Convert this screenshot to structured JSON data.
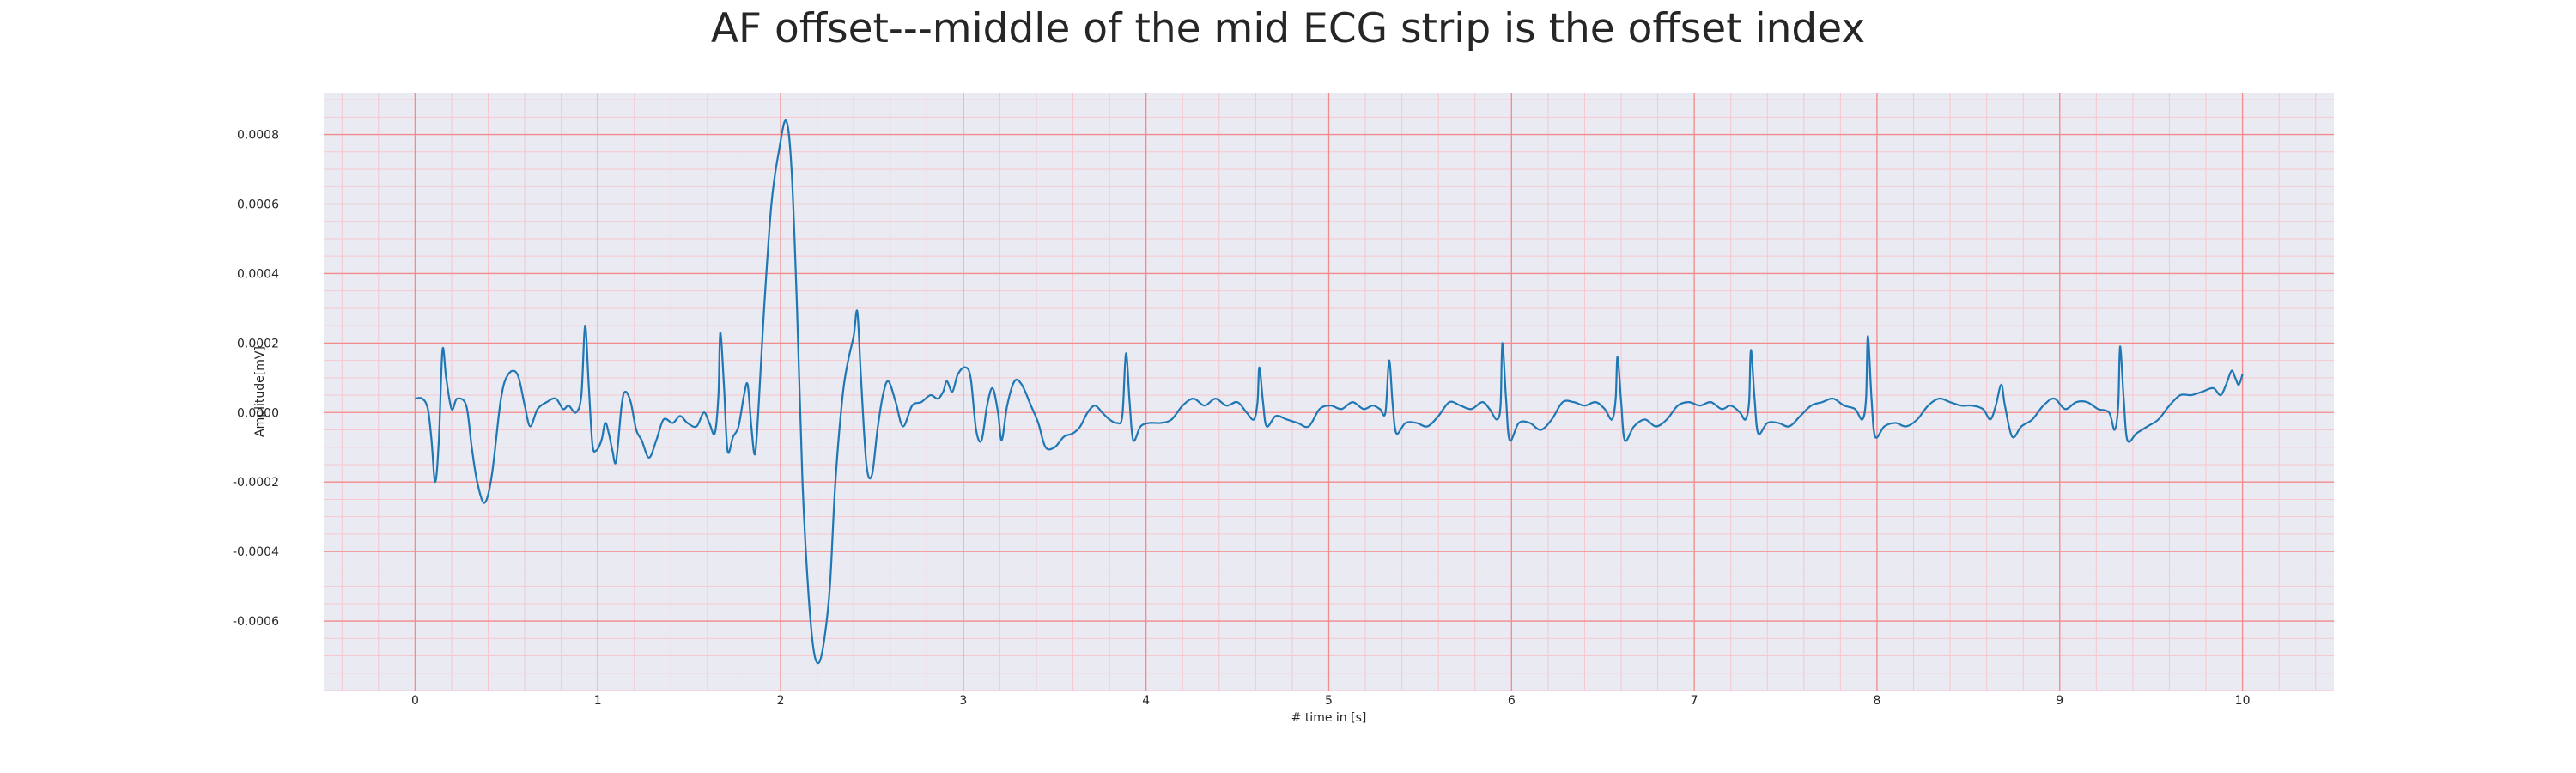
{
  "chart_data": {
    "type": "line",
    "title": "AF offset---middle of the mid ECG strip is the offset index",
    "xlabel": "# time in [s]",
    "ylabel": "Amplitude[mV]",
    "xlim": [
      -0.5,
      10.5
    ],
    "ylim": [
      -0.0008,
      0.00092
    ],
    "x_ticks": [
      0,
      1,
      2,
      3,
      4,
      5,
      6,
      7,
      8,
      9,
      10
    ],
    "x_tick_labels": [
      "0",
      "1",
      "2",
      "3",
      "4",
      "5",
      "6",
      "7",
      "8",
      "9",
      "10"
    ],
    "y_ticks": [
      -0.0006,
      -0.0004,
      -0.0002,
      0.0,
      0.0002,
      0.0004,
      0.0006,
      0.0008
    ],
    "y_tick_labels": [
      "-0.0006",
      "-0.0004",
      "-0.0002",
      "0.0000",
      "0.0002",
      "0.0004",
      "0.0006",
      "0.0008"
    ],
    "grid": true,
    "minor_grid": true,
    "colors": {
      "plot_background": "#eaeaf2",
      "major_grid": "#f28b8b",
      "minor_grid": "#f6c7cd",
      "line": "#1f77b4"
    },
    "series": [
      {
        "name": "",
        "points": [
          [
            0.0,
            4e-05
          ],
          [
            0.04,
            4e-05
          ],
          [
            0.07,
            1e-05
          ],
          [
            0.09,
            -8e-05
          ],
          [
            0.11,
            -0.0002
          ],
          [
            0.13,
            -8e-05
          ],
          [
            0.15,
            0.00018
          ],
          [
            0.17,
            0.0001
          ],
          [
            0.2,
            1e-05
          ],
          [
            0.23,
            4e-05
          ],
          [
            0.28,
            2e-05
          ],
          [
            0.31,
            -0.0001
          ],
          [
            0.34,
            -0.0002
          ],
          [
            0.38,
            -0.00026
          ],
          [
            0.42,
            -0.00018
          ],
          [
            0.47,
            4e-05
          ],
          [
            0.51,
            0.00011
          ],
          [
            0.56,
            0.00011
          ],
          [
            0.6,
            2e-05
          ],
          [
            0.63,
            -4e-05
          ],
          [
            0.67,
            1e-05
          ],
          [
            0.72,
            3e-05
          ],
          [
            0.77,
            4e-05
          ],
          [
            0.81,
            1e-05
          ],
          [
            0.84,
            2e-05
          ],
          [
            0.88,
            0.0
          ],
          [
            0.91,
            5e-05
          ],
          [
            0.93,
            0.00025
          ],
          [
            0.95,
            8e-05
          ],
          [
            0.97,
            -9e-05
          ],
          [
            0.99,
            -0.00011
          ],
          [
            1.02,
            -8e-05
          ],
          [
            1.04,
            -3e-05
          ],
          [
            1.06,
            -6e-05
          ],
          [
            1.08,
            -0.00011
          ],
          [
            1.1,
            -0.00014
          ],
          [
            1.13,
            2e-05
          ],
          [
            1.15,
            6e-05
          ],
          [
            1.18,
            3e-05
          ],
          [
            1.21,
            -5e-05
          ],
          [
            1.24,
            -8e-05
          ],
          [
            1.28,
            -0.00013
          ],
          [
            1.32,
            -8e-05
          ],
          [
            1.36,
            -2e-05
          ],
          [
            1.41,
            -3e-05
          ],
          [
            1.45,
            -1e-05
          ],
          [
            1.49,
            -3e-05
          ],
          [
            1.54,
            -4e-05
          ],
          [
            1.58,
            0.0
          ],
          [
            1.61,
            -3e-05
          ],
          [
            1.64,
            -6e-05
          ],
          [
            1.66,
            5e-05
          ],
          [
            1.67,
            0.00023
          ],
          [
            1.69,
            8e-05
          ],
          [
            1.71,
            -0.00011
          ],
          [
            1.74,
            -7e-05
          ],
          [
            1.77,
            -4e-05
          ],
          [
            1.8,
            5e-05
          ],
          [
            1.82,
            8e-05
          ],
          [
            1.84,
            -4e-05
          ],
          [
            1.86,
            -0.00012
          ],
          [
            1.88,
            2e-05
          ],
          [
            1.91,
            0.0003
          ],
          [
            1.95,
            0.0006
          ],
          [
            1.99,
            0.00075
          ],
          [
            2.03,
            0.00084
          ],
          [
            2.06,
            0.0007
          ],
          [
            2.09,
            0.0003
          ],
          [
            2.12,
            -0.0002
          ],
          [
            2.15,
            -0.0005
          ],
          [
            2.18,
            -0.00068
          ],
          [
            2.21,
            -0.00072
          ],
          [
            2.24,
            -0.00065
          ],
          [
            2.27,
            -0.0005
          ],
          [
            2.3,
            -0.0002
          ],
          [
            2.34,
            5e-05
          ],
          [
            2.37,
            0.00015
          ],
          [
            2.4,
            0.00022
          ],
          [
            2.42,
            0.00029
          ],
          [
            2.44,
            0.0001
          ],
          [
            2.47,
            -0.00015
          ],
          [
            2.5,
            -0.00018
          ],
          [
            2.53,
            -5e-05
          ],
          [
            2.56,
            5e-05
          ],
          [
            2.59,
            9e-05
          ],
          [
            2.63,
            3e-05
          ],
          [
            2.67,
            -4e-05
          ],
          [
            2.72,
            2e-05
          ],
          [
            2.77,
            3e-05
          ],
          [
            2.82,
            5e-05
          ],
          [
            2.86,
            4e-05
          ],
          [
            2.89,
            6e-05
          ],
          [
            2.91,
            9e-05
          ],
          [
            2.94,
            6e-05
          ],
          [
            2.97,
            0.00011
          ],
          [
            3.01,
            0.00013
          ],
          [
            3.04,
            0.0001
          ],
          [
            3.07,
            -5e-05
          ],
          [
            3.1,
            -8e-05
          ],
          [
            3.13,
            2e-05
          ],
          [
            3.16,
            7e-05
          ],
          [
            3.19,
            0.0
          ],
          [
            3.21,
            -8e-05
          ],
          [
            3.24,
            2e-05
          ],
          [
            3.28,
            9e-05
          ],
          [
            3.32,
            8e-05
          ],
          [
            3.37,
            2e-05
          ],
          [
            3.41,
            -3e-05
          ],
          [
            3.45,
            -0.0001
          ],
          [
            3.5,
            -0.0001
          ],
          [
            3.55,
            -7e-05
          ],
          [
            3.6,
            -6e-05
          ],
          [
            3.64,
            -4e-05
          ],
          [
            3.68,
            0.0
          ],
          [
            3.72,
            2e-05
          ],
          [
            3.76,
            0.0
          ],
          [
            3.8,
            -2e-05
          ],
          [
            3.84,
            -3e-05
          ],
          [
            3.87,
            -1e-05
          ],
          [
            3.89,
            0.00017
          ],
          [
            3.91,
            3e-05
          ],
          [
            3.93,
            -8e-05
          ],
          [
            3.97,
            -4e-05
          ],
          [
            4.02,
            -3e-05
          ],
          [
            4.08,
            -3e-05
          ],
          [
            4.14,
            -2e-05
          ],
          [
            4.2,
            2e-05
          ],
          [
            4.26,
            4e-05
          ],
          [
            4.32,
            2e-05
          ],
          [
            4.38,
            4e-05
          ],
          [
            4.44,
            2e-05
          ],
          [
            4.5,
            3e-05
          ],
          [
            4.55,
            0.0
          ],
          [
            4.59,
            -2e-05
          ],
          [
            4.61,
            3e-05
          ],
          [
            4.62,
            0.00013
          ],
          [
            4.64,
            3e-05
          ],
          [
            4.66,
            -4e-05
          ],
          [
            4.71,
            -1e-05
          ],
          [
            4.77,
            -2e-05
          ],
          [
            4.83,
            -3e-05
          ],
          [
            4.89,
            -4e-05
          ],
          [
            4.95,
            1e-05
          ],
          [
            5.01,
            2e-05
          ],
          [
            5.07,
            1e-05
          ],
          [
            5.13,
            3e-05
          ],
          [
            5.19,
            1e-05
          ],
          [
            5.24,
            2e-05
          ],
          [
            5.28,
            1e-05
          ],
          [
            5.31,
            0.0
          ],
          [
            5.33,
            0.00015
          ],
          [
            5.35,
            2e-05
          ],
          [
            5.37,
            -6e-05
          ],
          [
            5.42,
            -3e-05
          ],
          [
            5.48,
            -3e-05
          ],
          [
            5.54,
            -4e-05
          ],
          [
            5.6,
            -1e-05
          ],
          [
            5.66,
            3e-05
          ],
          [
            5.72,
            2e-05
          ],
          [
            5.78,
            1e-05
          ],
          [
            5.84,
            3e-05
          ],
          [
            5.88,
            1e-05
          ],
          [
            5.92,
            -2e-05
          ],
          [
            5.94,
            2e-05
          ],
          [
            5.95,
            0.0002
          ],
          [
            5.97,
            4e-05
          ],
          [
            5.99,
            -8e-05
          ],
          [
            6.04,
            -3e-05
          ],
          [
            6.1,
            -3e-05
          ],
          [
            6.16,
            -5e-05
          ],
          [
            6.22,
            -2e-05
          ],
          [
            6.28,
            3e-05
          ],
          [
            6.34,
            3e-05
          ],
          [
            6.4,
            2e-05
          ],
          [
            6.46,
            3e-05
          ],
          [
            6.51,
            1e-05
          ],
          [
            6.55,
            -2e-05
          ],
          [
            6.57,
            4e-05
          ],
          [
            6.58,
            0.00016
          ],
          [
            6.6,
            3e-05
          ],
          [
            6.62,
            -8e-05
          ],
          [
            6.67,
            -4e-05
          ],
          [
            6.73,
            -2e-05
          ],
          [
            6.79,
            -4e-05
          ],
          [
            6.85,
            -2e-05
          ],
          [
            6.91,
            2e-05
          ],
          [
            6.97,
            3e-05
          ],
          [
            7.03,
            2e-05
          ],
          [
            7.09,
            3e-05
          ],
          [
            7.15,
            1e-05
          ],
          [
            7.2,
            2e-05
          ],
          [
            7.25,
            0.0
          ],
          [
            7.28,
            -2e-05
          ],
          [
            7.3,
            3e-05
          ],
          [
            7.31,
            0.00018
          ],
          [
            7.33,
            4e-05
          ],
          [
            7.35,
            -6e-05
          ],
          [
            7.4,
            -3e-05
          ],
          [
            7.46,
            -3e-05
          ],
          [
            7.52,
            -4e-05
          ],
          [
            7.58,
            -1e-05
          ],
          [
            7.64,
            2e-05
          ],
          [
            7.7,
            3e-05
          ],
          [
            7.76,
            4e-05
          ],
          [
            7.82,
            2e-05
          ],
          [
            7.88,
            1e-05
          ],
          [
            7.92,
            -2e-05
          ],
          [
            7.94,
            4e-05
          ],
          [
            7.95,
            0.00022
          ],
          [
            7.97,
            4e-05
          ],
          [
            7.99,
            -7e-05
          ],
          [
            8.04,
            -4e-05
          ],
          [
            8.1,
            -3e-05
          ],
          [
            8.16,
            -4e-05
          ],
          [
            8.22,
            -2e-05
          ],
          [
            8.28,
            2e-05
          ],
          [
            8.34,
            4e-05
          ],
          [
            8.4,
            3e-05
          ],
          [
            8.46,
            2e-05
          ],
          [
            8.52,
            2e-05
          ],
          [
            8.58,
            1e-05
          ],
          [
            8.62,
            -2e-05
          ],
          [
            8.65,
            2e-05
          ],
          [
            8.68,
            8e-05
          ],
          [
            8.7,
            2e-05
          ],
          [
            8.74,
            -7e-05
          ],
          [
            8.79,
            -4e-05
          ],
          [
            8.85,
            -2e-05
          ],
          [
            8.91,
            2e-05
          ],
          [
            8.97,
            4e-05
          ],
          [
            9.03,
            1e-05
          ],
          [
            9.09,
            3e-05
          ],
          [
            9.15,
            3e-05
          ],
          [
            9.21,
            1e-05
          ],
          [
            9.27,
            0.0
          ],
          [
            9.3,
            -5e-05
          ],
          [
            9.32,
            2e-05
          ],
          [
            9.33,
            0.00019
          ],
          [
            9.35,
            4e-05
          ],
          [
            9.37,
            -8e-05
          ],
          [
            9.42,
            -6e-05
          ],
          [
            9.48,
            -4e-05
          ],
          [
            9.54,
            -2e-05
          ],
          [
            9.6,
            2e-05
          ],
          [
            9.66,
            5e-05
          ],
          [
            9.72,
            5e-05
          ],
          [
            9.78,
            6e-05
          ],
          [
            9.84,
            7e-05
          ],
          [
            9.88,
            5e-05
          ],
          [
            9.91,
            8e-05
          ],
          [
            9.94,
            0.00012
          ],
          [
            9.96,
            0.0001
          ],
          [
            9.98,
            8e-05
          ],
          [
            10.0,
            0.00011
          ]
        ]
      }
    ]
  }
}
